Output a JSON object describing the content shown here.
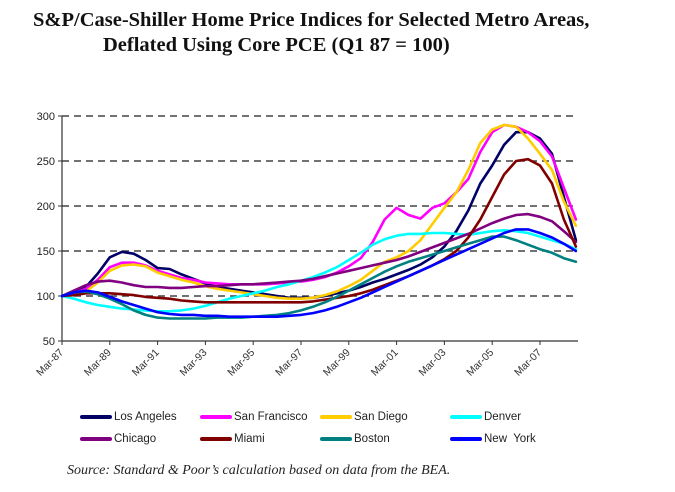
{
  "chart_data": {
    "type": "line",
    "title": "S&P/Case-Shiller Home Price Indices for Selected Metro Areas,",
    "subtitle": "Deflated Using Core PCE (Q1 87 = 100)",
    "xlabel": "",
    "ylabel": "",
    "ylim": [
      50,
      300
    ],
    "yticks": [
      "50",
      "100",
      "150",
      "200",
      "250",
      "300"
    ],
    "xlim": [
      1987,
      2008.6
    ],
    "xticks": [
      "Mar-87",
      "Mar-89",
      "Mar-91",
      "Mar-93",
      "Mar-95",
      "Mar-97",
      "Mar-99",
      "Mar-01",
      "Mar-03",
      "Mar-05",
      "Mar-07"
    ],
    "grid": "horizontal dashed",
    "legend_position": "bottom",
    "x": [
      1987,
      1987.5,
      1988,
      1988.5,
      1989,
      1989.5,
      1990,
      1990.5,
      1991,
      1991.5,
      1992,
      1992.5,
      1993,
      1993.5,
      1994,
      1994.5,
      1995,
      1995.5,
      1996,
      1996.5,
      1997,
      1997.5,
      1998,
      1998.5,
      1999,
      1999.5,
      2000,
      2000.5,
      2001,
      2001.5,
      2002,
      2002.5,
      2003,
      2003.5,
      2004,
      2004.5,
      2005,
      2005.5,
      2006,
      2006.5,
      2007,
      2007.5,
      2008,
      2008.5
    ],
    "series": [
      {
        "name": "Los Angeles",
        "color": "#000066",
        "values": [
          100,
          104,
          110,
          125,
          143,
          149,
          147,
          140,
          131,
          130,
          124,
          119,
          114,
          110,
          108,
          106,
          104,
          102,
          100,
          98,
          98,
          98,
          100,
          103,
          106,
          110,
          115,
          119,
          124,
          129,
          135,
          143,
          155,
          172,
          195,
          225,
          245,
          268,
          282,
          282,
          275,
          258,
          210,
          162
        ]
      },
      {
        "name": "San Francisco",
        "color": "#ff00ff",
        "values": [
          100,
          103,
          108,
          118,
          132,
          137,
          137,
          134,
          128,
          124,
          120,
          118,
          115,
          114,
          113,
          113,
          113,
          113,
          114,
          115,
          116,
          118,
          121,
          126,
          133,
          142,
          160,
          185,
          198,
          190,
          186,
          198,
          203,
          215,
          230,
          260,
          282,
          290,
          288,
          282,
          272,
          255,
          220,
          185
        ]
      },
      {
        "name": "San Diego",
        "color": "#ffcc00",
        "values": [
          100,
          102,
          105,
          115,
          128,
          134,
          135,
          133,
          126,
          122,
          118,
          115,
          111,
          108,
          106,
          104,
          102,
          100,
          98,
          97,
          97,
          98,
          101,
          105,
          111,
          118,
          128,
          138,
          143,
          150,
          162,
          180,
          198,
          215,
          240,
          270,
          285,
          290,
          288,
          275,
          258,
          240,
          205,
          178
        ]
      },
      {
        "name": "Denver",
        "color": "#00ffff",
        "values": [
          100,
          97,
          93,
          90,
          88,
          86,
          85,
          84,
          83,
          83,
          84,
          86,
          89,
          93,
          97,
          100,
          103,
          106,
          110,
          113,
          117,
          121,
          126,
          132,
          140,
          148,
          157,
          163,
          167,
          169,
          169,
          170,
          170,
          169,
          168,
          170,
          172,
          173,
          172,
          170,
          166,
          162,
          158,
          152
        ]
      },
      {
        "name": "Chicago",
        "color": "#800080",
        "values": [
          100,
          106,
          112,
          116,
          117,
          115,
          112,
          110,
          110,
          109,
          109,
          110,
          111,
          111,
          112,
          113,
          113,
          114,
          115,
          116,
          117,
          119,
          122,
          125,
          128,
          131,
          134,
          137,
          140,
          144,
          149,
          154,
          159,
          164,
          169,
          175,
          181,
          186,
          190,
          191,
          188,
          183,
          172,
          160
        ]
      },
      {
        "name": "Miami",
        "color": "#800000",
        "values": [
          100,
          101,
          103,
          103,
          103,
          102,
          101,
          99,
          98,
          97,
          95,
          94,
          93,
          93,
          93,
          93,
          93,
          93,
          93,
          93,
          93,
          94,
          96,
          98,
          100,
          103,
          107,
          112,
          117,
          122,
          128,
          134,
          141,
          150,
          165,
          185,
          210,
          235,
          250,
          252,
          245,
          225,
          185,
          155
        ]
      },
      {
        "name": "Boston",
        "color": "#008080",
        "values": [
          100,
          104,
          105,
          102,
          97,
          91,
          84,
          79,
          76,
          75,
          75,
          75,
          75,
          76,
          76,
          76,
          77,
          78,
          79,
          81,
          84,
          88,
          93,
          99,
          106,
          113,
          120,
          127,
          133,
          138,
          142,
          146,
          150,
          154,
          158,
          162,
          166,
          166,
          162,
          157,
          152,
          148,
          142,
          138
        ]
      },
      {
        "name": "New York",
        "color": "#0000ff",
        "values": [
          100,
          104,
          106,
          104,
          99,
          94,
          90,
          86,
          82,
          80,
          79,
          79,
          78,
          78,
          77,
          77,
          77,
          77,
          77,
          78,
          79,
          81,
          84,
          88,
          93,
          98,
          104,
          110,
          116,
          122,
          128,
          134,
          140,
          146,
          152,
          158,
          164,
          170,
          174,
          174,
          170,
          165,
          158,
          150
        ]
      }
    ]
  },
  "legend": {
    "items": [
      "Los Angeles",
      "San Francisco",
      "San Diego",
      "Denver",
      "Chicago",
      "Miami",
      "Boston",
      "New  York"
    ]
  },
  "source": "Source: Standard & Poor’s calculation based on data from the BEA."
}
